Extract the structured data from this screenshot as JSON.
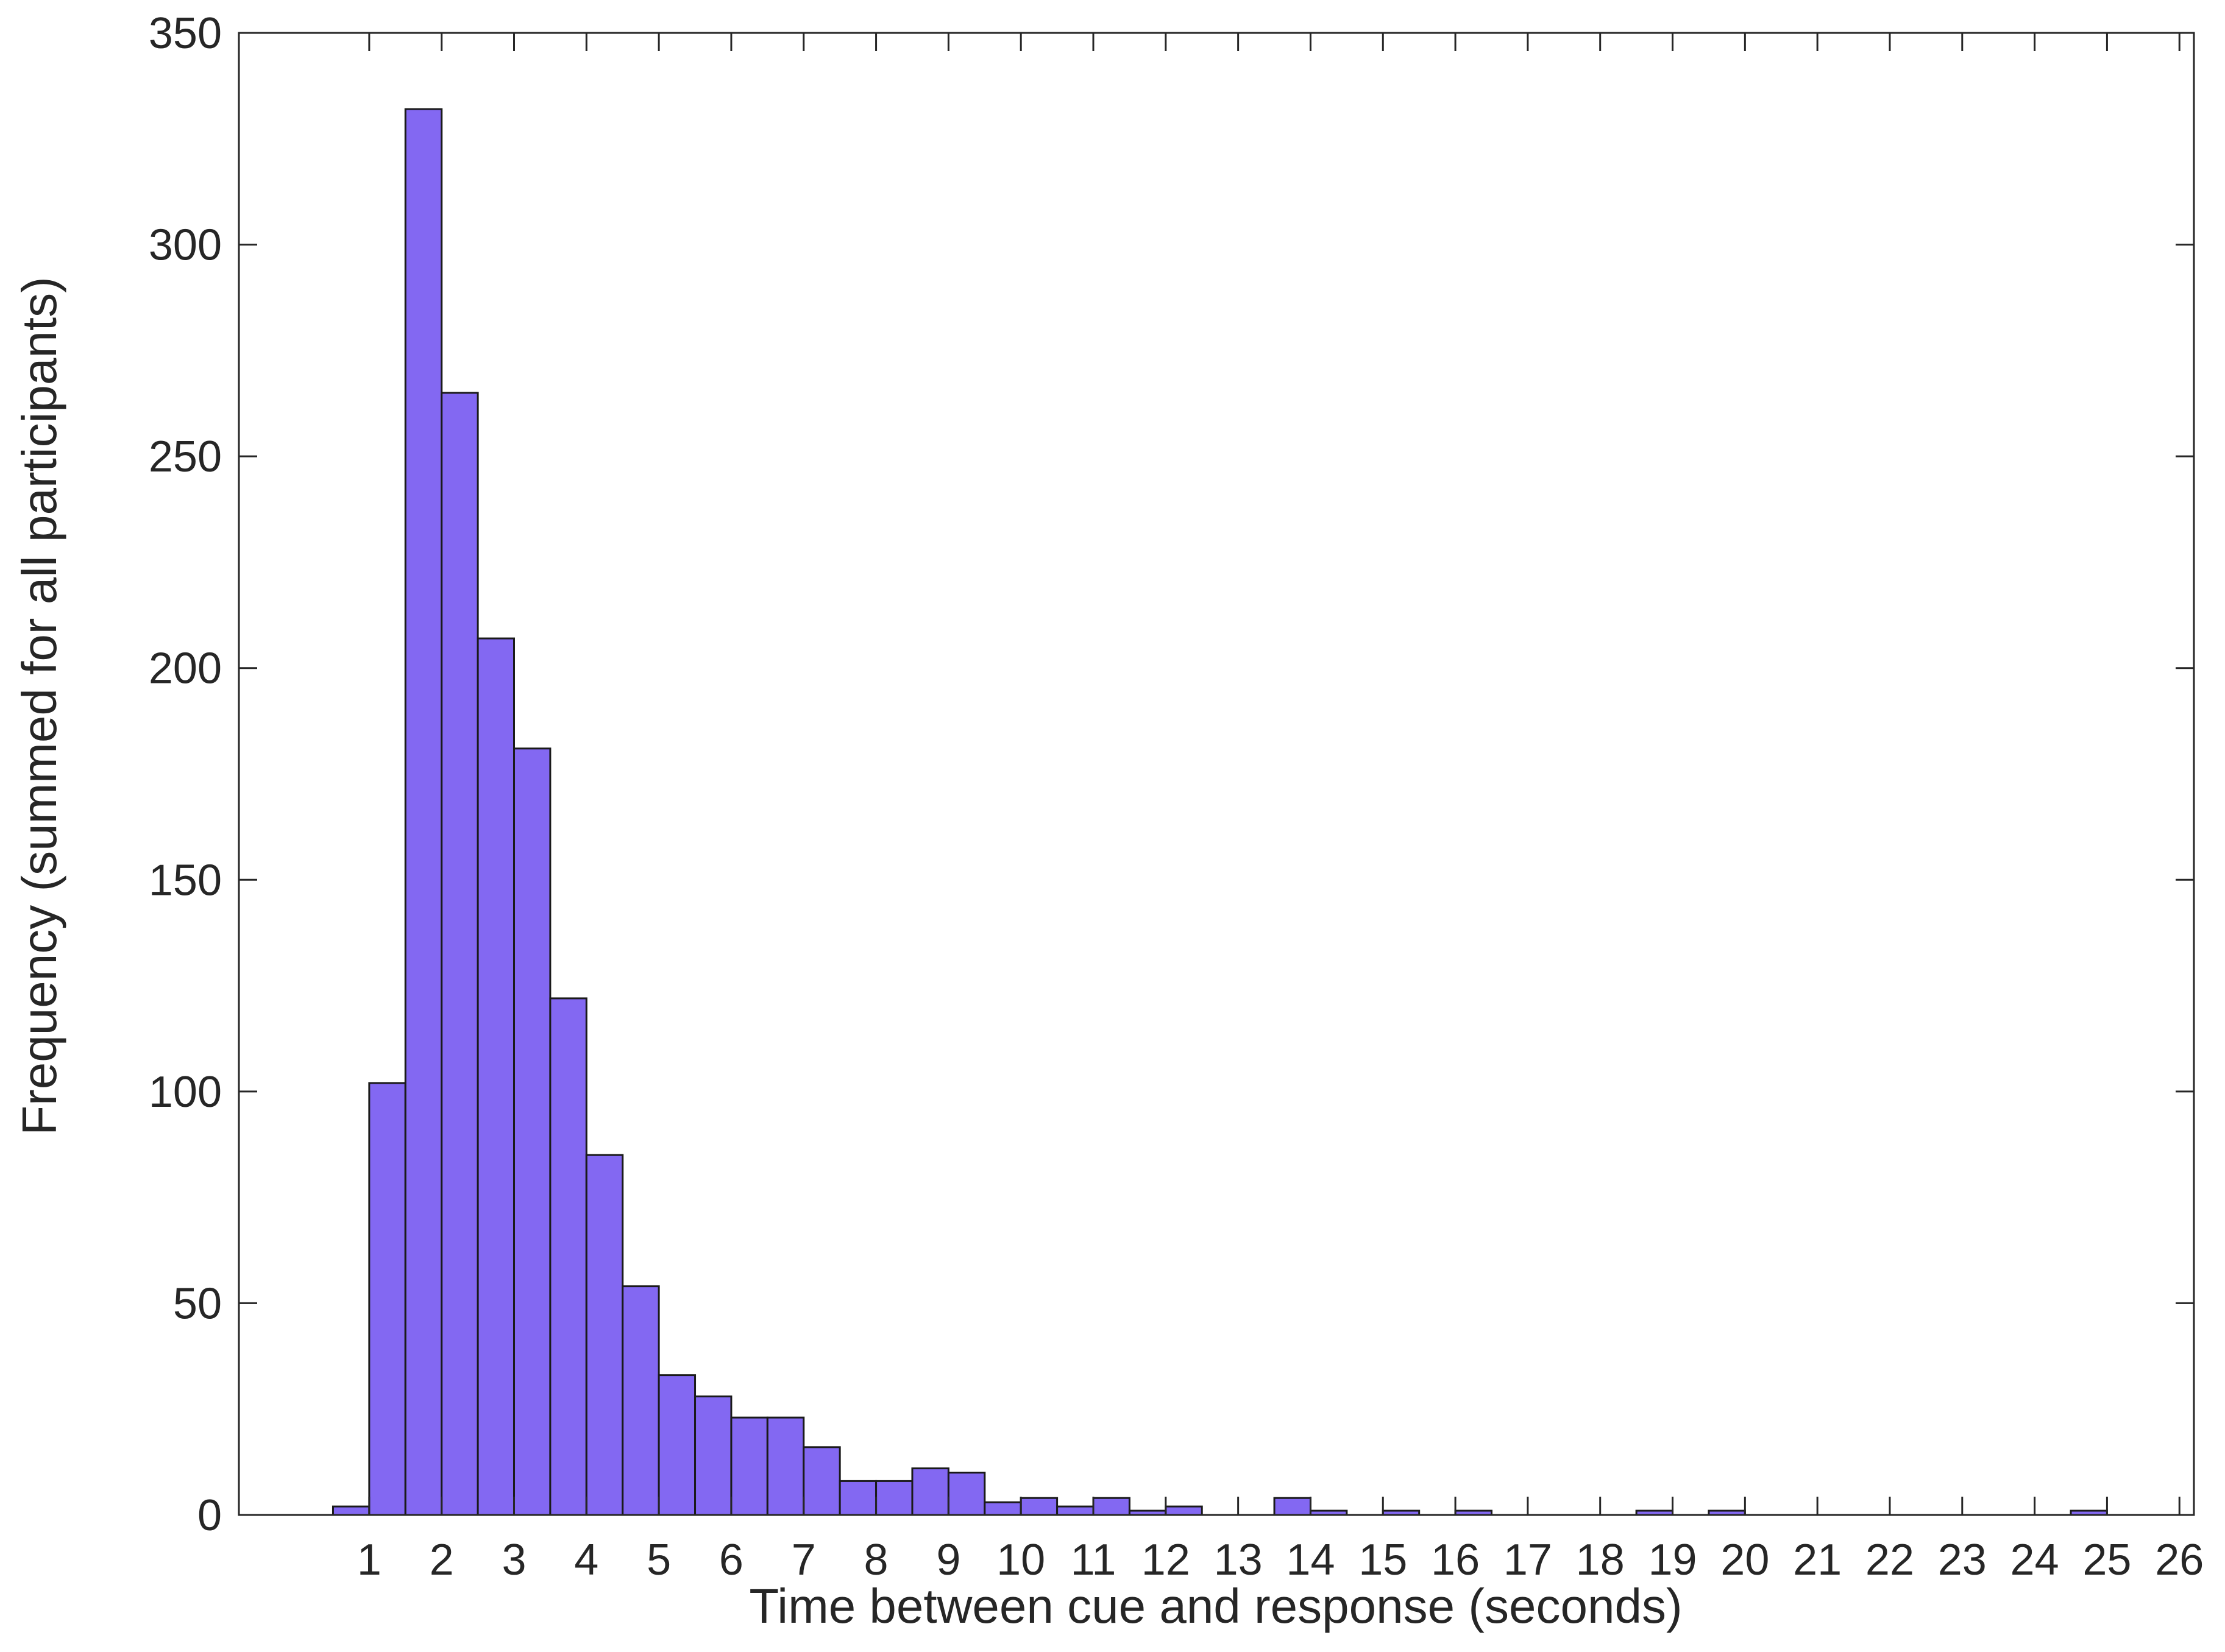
{
  "chart_data": {
    "type": "bar",
    "title": "",
    "xlabel": "Time between cue and response (seconds)",
    "ylabel": "Frequency (summed for all participants)",
    "xlim": [
      -0.8,
      26.2
    ],
    "ylim": [
      0,
      350
    ],
    "bin_width": 0.5,
    "bins": [
      {
        "start": 0.5,
        "end": 1.0,
        "value": 2
      },
      {
        "start": 1.0,
        "end": 1.5,
        "value": 102
      },
      {
        "start": 1.5,
        "end": 2.0,
        "value": 332
      },
      {
        "start": 2.0,
        "end": 2.5,
        "value": 265
      },
      {
        "start": 2.5,
        "end": 3.0,
        "value": 207
      },
      {
        "start": 3.0,
        "end": 3.5,
        "value": 181
      },
      {
        "start": 3.5,
        "end": 4.0,
        "value": 122
      },
      {
        "start": 4.0,
        "end": 4.5,
        "value": 85
      },
      {
        "start": 4.5,
        "end": 5.0,
        "value": 54
      },
      {
        "start": 5.0,
        "end": 5.5,
        "value": 33
      },
      {
        "start": 5.5,
        "end": 6.0,
        "value": 28
      },
      {
        "start": 6.0,
        "end": 6.5,
        "value": 23
      },
      {
        "start": 6.5,
        "end": 7.0,
        "value": 23
      },
      {
        "start": 7.0,
        "end": 7.5,
        "value": 16
      },
      {
        "start": 7.5,
        "end": 8.0,
        "value": 8
      },
      {
        "start": 8.0,
        "end": 8.5,
        "value": 8
      },
      {
        "start": 8.5,
        "end": 9.0,
        "value": 11
      },
      {
        "start": 9.0,
        "end": 9.5,
        "value": 10
      },
      {
        "start": 9.5,
        "end": 10.0,
        "value": 3
      },
      {
        "start": 10.0,
        "end": 10.5,
        "value": 4
      },
      {
        "start": 10.5,
        "end": 11.0,
        "value": 2
      },
      {
        "start": 11.0,
        "end": 11.5,
        "value": 4
      },
      {
        "start": 11.5,
        "end": 12.0,
        "value": 1
      },
      {
        "start": 12.0,
        "end": 12.5,
        "value": 2
      },
      {
        "start": 13.5,
        "end": 14.0,
        "value": 4
      },
      {
        "start": 14.0,
        "end": 14.5,
        "value": 1
      },
      {
        "start": 15.0,
        "end": 15.5,
        "value": 1
      },
      {
        "start": 16.0,
        "end": 16.5,
        "value": 1
      },
      {
        "start": 18.5,
        "end": 19.0,
        "value": 1
      },
      {
        "start": 19.5,
        "end": 20.0,
        "value": 1
      },
      {
        "start": 24.5,
        "end": 25.0,
        "value": 1
      }
    ],
    "x_ticks": [
      "1",
      "2",
      "3",
      "4",
      "5",
      "6",
      "7",
      "8",
      "9",
      "10",
      "11",
      "12",
      "13",
      "14",
      "15",
      "16",
      "17",
      "18",
      "19",
      "20",
      "21",
      "22",
      "23",
      "24",
      "25",
      "26"
    ],
    "y_ticks": [
      "0",
      "50",
      "100",
      "150",
      "200",
      "250",
      "300",
      "350"
    ],
    "grid": false,
    "legend": "none",
    "colors": {
      "bar_fill": "#8368F2",
      "bar_edge": "#1a1a1a",
      "axis": "#262626"
    }
  }
}
